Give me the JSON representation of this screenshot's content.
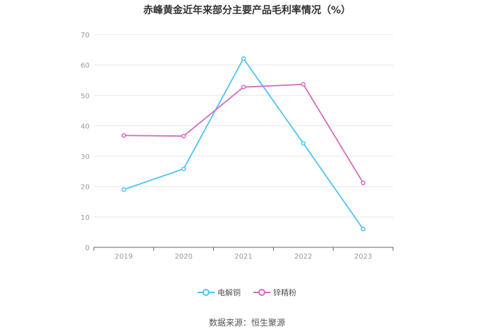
{
  "chart_data": {
    "type": "line",
    "title": "赤峰黄金近年来部分主要产品毛利率情况（%）",
    "xlabel": "",
    "ylabel": "",
    "categories": [
      "2019",
      "2020",
      "2021",
      "2022",
      "2023"
    ],
    "ylim": [
      0,
      70
    ],
    "yticks": [
      0,
      10,
      20,
      30,
      40,
      50,
      60,
      70
    ],
    "grid": true,
    "legend_position": "bottom",
    "series": [
      {
        "name": "电解铜",
        "color": "#4fc3f7",
        "values": [
          19.0,
          25.8,
          62.1,
          34.2,
          6.0
        ]
      },
      {
        "name": "锌精粉",
        "color": "#d36ac0",
        "values": [
          36.8,
          36.6,
          52.7,
          53.6,
          21.2
        ]
      }
    ]
  },
  "source": "数据来源：恒生聚源"
}
